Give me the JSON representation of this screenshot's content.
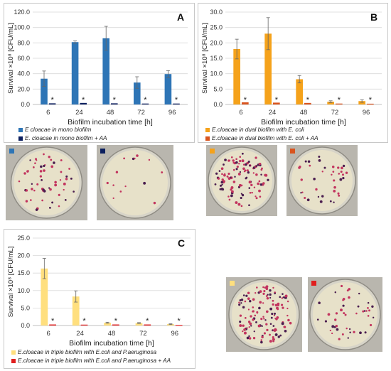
{
  "chart_data": [
    {
      "id": "A",
      "type": "bar",
      "panel_label": "A",
      "categories": [
        "6",
        "24",
        "48",
        "72",
        "96"
      ],
      "ylim": [
        0,
        120
      ],
      "yticks": [
        "0.0",
        "20.0",
        "40.0",
        "60.0",
        "80.0",
        "100.0",
        "120.0"
      ],
      "xlabel": "Biofilm incubation time [h]",
      "ylabel": "Survival ×10⁸ [CFU/mL]",
      "series": [
        {
          "name": "E cloacae in mono biofilm",
          "color": "#2e75b6",
          "values": [
            33.5,
            81,
            86,
            28.5,
            39.5
          ],
          "errors": [
            10,
            1.5,
            15.5,
            7.5,
            4.5
          ]
        },
        {
          "name": "E. cloacae in mono biofilm + AA",
          "color": "#0c1f5f",
          "values": [
            1.5,
            2,
            1.5,
            1.2,
            1.2
          ],
          "errors": [
            0,
            0,
            0,
            0,
            0
          ]
        }
      ],
      "annotations": [
        "*",
        "*",
        "*",
        "*",
        "*"
      ],
      "grid": true,
      "legend": "bottom"
    },
    {
      "id": "B",
      "type": "bar",
      "panel_label": "B",
      "categories": [
        "6",
        "24",
        "48",
        "72",
        "96"
      ],
      "ylim": [
        0,
        30
      ],
      "yticks": [
        "0.0",
        "5.0",
        "10.0",
        "15.0",
        "20.0",
        "25.0",
        "30.0"
      ],
      "xlabel": "Biofilm incubation time [h]",
      "ylabel": "Survival ×10⁸ [CFU/mL]",
      "series": [
        {
          "name": "E.cloacae in dual biofilm with E. coli",
          "color": "#f5a21b",
          "values": [
            18,
            23,
            8.2,
            0.9,
            1.1
          ],
          "errors": [
            3.2,
            5.2,
            1.2,
            0.3,
            0.4
          ]
        },
        {
          "name": "E.cloacae in dual biofilm with E. coli + AA",
          "color": "#d9541e",
          "values": [
            0.7,
            0.6,
            0.5,
            0.3,
            0.25
          ],
          "errors": [
            0,
            0,
            0,
            0,
            0
          ]
        }
      ],
      "annotations": [
        "*",
        "*",
        "*",
        "*",
        "*"
      ],
      "grid": true,
      "legend": "bottom"
    },
    {
      "id": "C",
      "type": "bar",
      "panel_label": "C",
      "categories": [
        "6",
        "24",
        "48",
        "72",
        "96"
      ],
      "ylim": [
        0,
        25
      ],
      "yticks": [
        "0.0",
        "5.0",
        "10.0",
        "15.0",
        "20.0",
        "25.0"
      ],
      "xlabel": "Biofilm incubation time [h]",
      "ylabel": "Survival ×10⁸ [CFU/mL]",
      "series": [
        {
          "name": "E.cloacae in triple biofilm with E.coli and P.aeruginosa",
          "color": "#ffdf7e",
          "values": [
            16.3,
            8.3,
            0.8,
            0.7,
            0.4
          ],
          "errors": [
            2.9,
            1.6,
            0.15,
            0.15,
            0.1
          ]
        },
        {
          "name": "E.cloacae in triple biofilm with E.coli and P.aeruginosa  + AA",
          "color": "#e01f1f",
          "values": [
            0.3,
            0.25,
            0.3,
            0.3,
            0.15
          ],
          "errors": [
            0,
            0,
            0,
            0,
            0
          ]
        }
      ],
      "annotations": [
        "*",
        "*",
        "*",
        "*",
        "*"
      ],
      "grid": true,
      "legend": "bottom"
    }
  ],
  "plates": [
    {
      "marker_color": "#2e75b6",
      "colonies": 55,
      "seed": 11
    },
    {
      "marker_color": "#0c1f5f",
      "colonies": 14,
      "seed": 23
    },
    {
      "marker_color": "#f5a21b",
      "colonies": 110,
      "seed": 37
    },
    {
      "marker_color": "#d9541e",
      "colonies": 38,
      "seed": 51
    },
    {
      "marker_color": "#ffdf7e",
      "colonies": 130,
      "seed": 67
    },
    {
      "marker_color": "#e01f1f",
      "colonies": 45,
      "seed": 83
    }
  ]
}
